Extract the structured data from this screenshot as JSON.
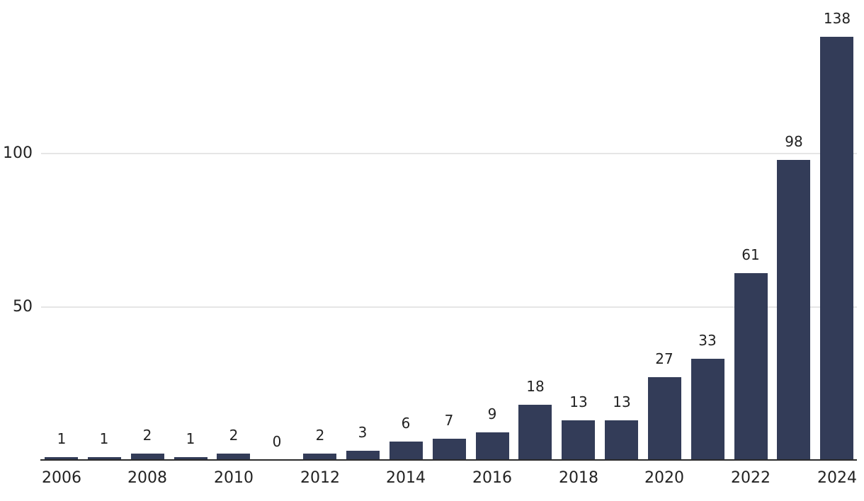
{
  "chart_data": {
    "type": "bar",
    "categories": [
      "2006",
      "2007",
      "2008",
      "2009",
      "2010",
      "2011",
      "2012",
      "2013",
      "2014",
      "2015",
      "2016",
      "2017",
      "2018",
      "2019",
      "2020",
      "2021",
      "2022",
      "2023",
      "2024"
    ],
    "values": [
      1,
      1,
      2,
      1,
      2,
      0,
      2,
      3,
      6,
      7,
      9,
      18,
      13,
      13,
      27,
      33,
      61,
      98,
      138
    ],
    "title": "",
    "xlabel": "",
    "ylabel": "",
    "ylim": [
      0,
      150
    ],
    "yticks": [
      50,
      100
    ],
    "x_tick_labels": [
      "2006",
      "2008",
      "2010",
      "2012",
      "2014",
      "2016",
      "2018",
      "2020",
      "2022",
      "2024"
    ],
    "data_labels_shown": true,
    "legend": "none",
    "grid": "horizontal"
  },
  "colors": {
    "bar": "#333c58",
    "grid": "#e6e6e6",
    "axis": "#2b2b2b",
    "text": "#222222",
    "background": "#ffffff"
  }
}
